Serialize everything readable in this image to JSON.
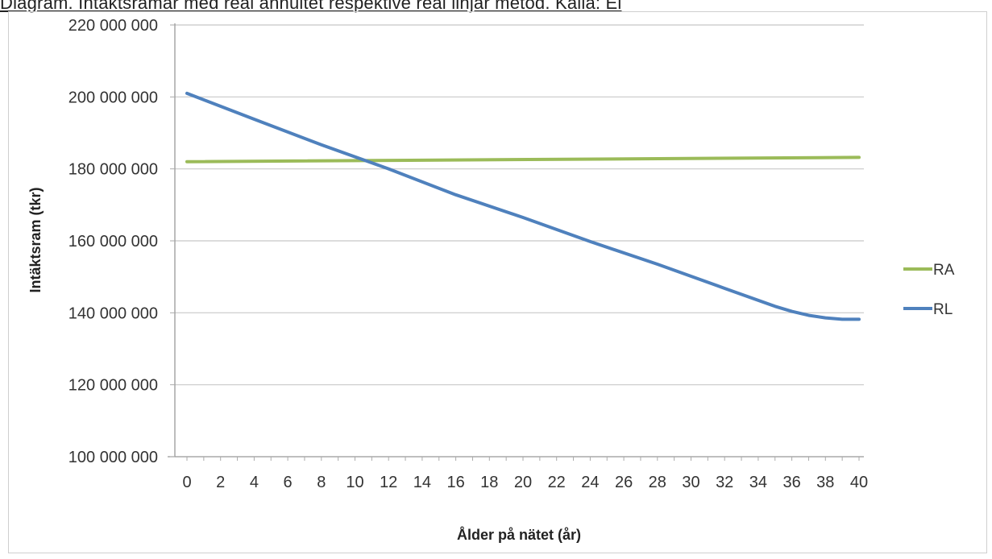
{
  "caption": "Diagram. Intäktsramar med real annuitet respektive real linjär metod. Källa: Ei",
  "chart_data": {
    "type": "line",
    "title": "",
    "xlabel": "Ålder på nätet (år)",
    "ylabel": "Intäktsram (tkr)",
    "xlim": [
      0,
      40
    ],
    "ylim": [
      100000000,
      220000000
    ],
    "y_ticks": [
      {
        "value": 100000000,
        "label": "100 000 000"
      },
      {
        "value": 120000000,
        "label": "120 000 000"
      },
      {
        "value": 140000000,
        "label": "140 000 000"
      },
      {
        "value": 160000000,
        "label": "160 000 000"
      },
      {
        "value": 180000000,
        "label": "180 000 000"
      },
      {
        "value": 200000000,
        "label": "200 000 000"
      },
      {
        "value": 220000000,
        "label": "220 000 000"
      }
    ],
    "x_tick_labels": [
      "0",
      "2",
      "4",
      "6",
      "8",
      "10",
      "12",
      "14",
      "16",
      "18",
      "20",
      "22",
      "24",
      "26",
      "28",
      "30",
      "32",
      "34",
      "36",
      "38",
      "40"
    ],
    "grid": true,
    "legend_position": "right",
    "series": [
      {
        "name": "RA",
        "color": "#9bbb59",
        "x": [
          0,
          40
        ],
        "values": [
          182000000,
          183200000
        ]
      },
      {
        "name": "RL",
        "color": "#4f81bd",
        "x": [
          0,
          4,
          8,
          12,
          16,
          20,
          24,
          28,
          32,
          35,
          36,
          37,
          38,
          39,
          40
        ],
        "values": [
          201000000,
          193800000,
          186700000,
          180000000,
          172800000,
          166500000,
          159800000,
          153500000,
          146800000,
          141800000,
          140400000,
          139300000,
          138600000,
          138200000,
          138200000
        ]
      }
    ]
  }
}
